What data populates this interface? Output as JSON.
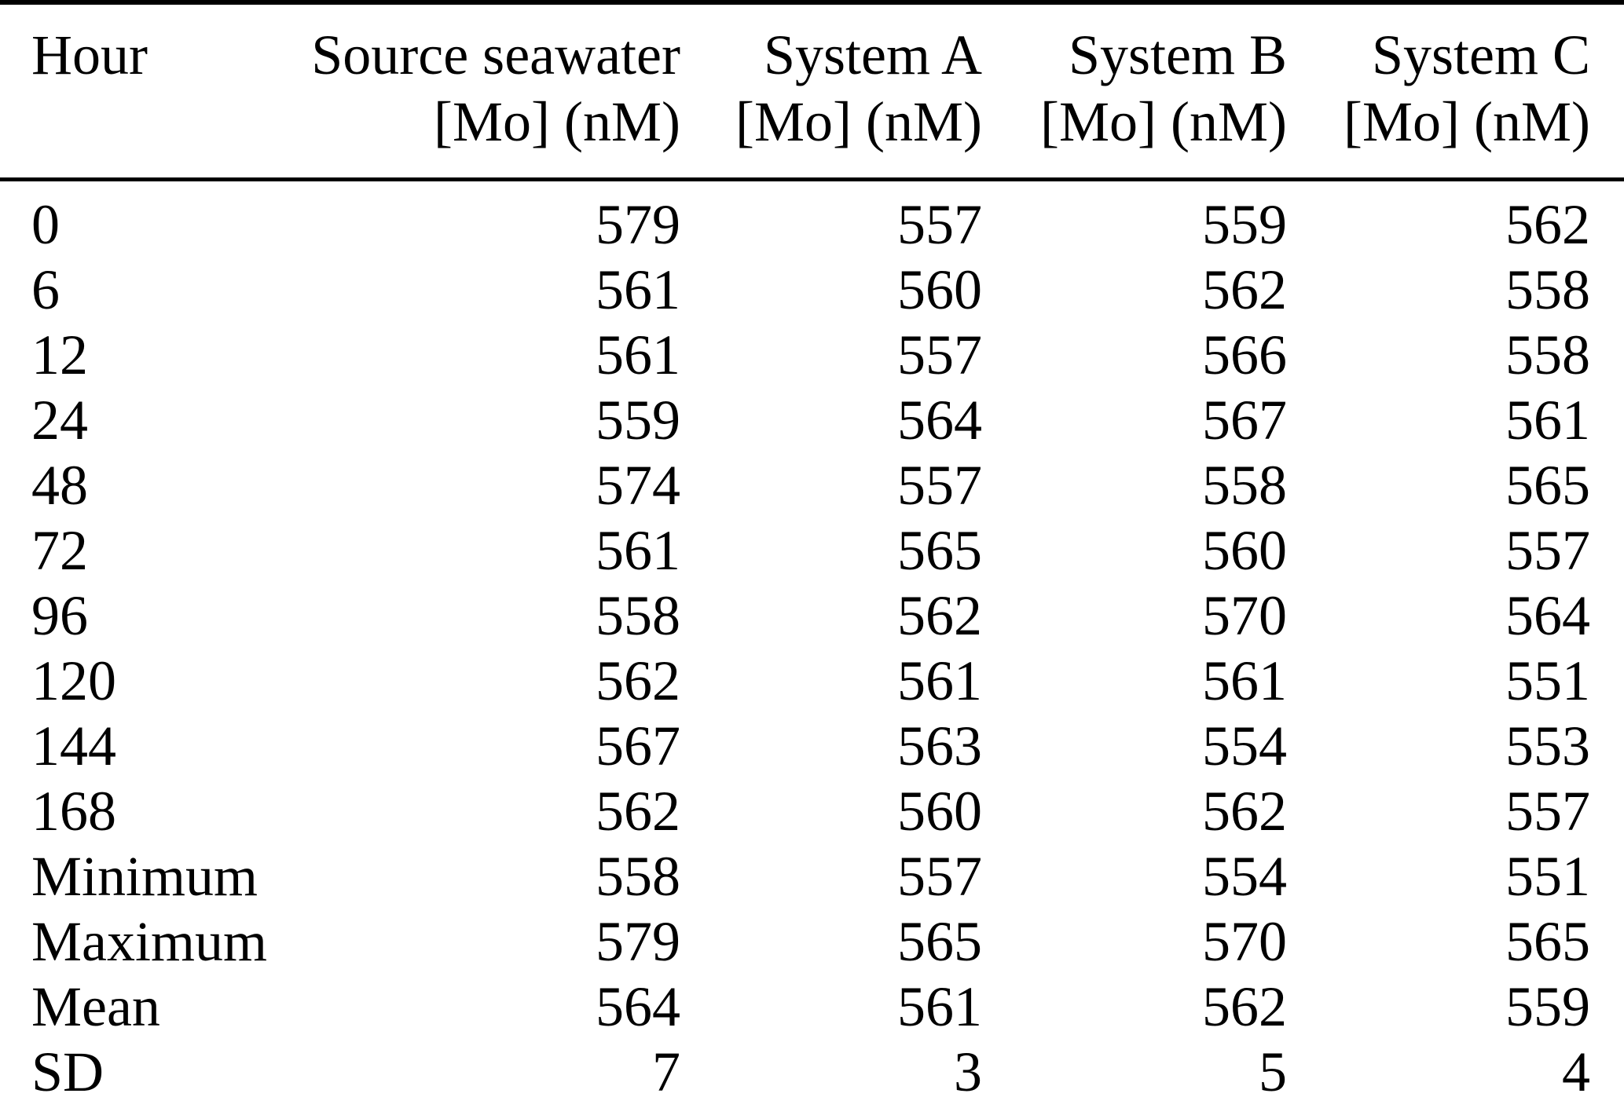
{
  "table": {
    "columns": [
      {
        "line1": "Hour",
        "line2": ""
      },
      {
        "line1": "Source seawater",
        "line2": "[Mo] (nM)"
      },
      {
        "line1": "System A",
        "line2": "[Mo] (nM)"
      },
      {
        "line1": "System B",
        "line2": "[Mo] (nM)"
      },
      {
        "line1": "System C",
        "line2": "[Mo] (nM)"
      }
    ],
    "rows": [
      {
        "label": "0",
        "values": [
          "579",
          "557",
          "559",
          "562"
        ]
      },
      {
        "label": "6",
        "values": [
          "561",
          "560",
          "562",
          "558"
        ]
      },
      {
        "label": "12",
        "values": [
          "561",
          "557",
          "566",
          "558"
        ]
      },
      {
        "label": "24",
        "values": [
          "559",
          "564",
          "567",
          "561"
        ]
      },
      {
        "label": "48",
        "values": [
          "574",
          "557",
          "558",
          "565"
        ]
      },
      {
        "label": "72",
        "values": [
          "561",
          "565",
          "560",
          "557"
        ]
      },
      {
        "label": "96",
        "values": [
          "558",
          "562",
          "570",
          "564"
        ]
      },
      {
        "label": "120",
        "values": [
          "562",
          "561",
          "561",
          "551"
        ]
      },
      {
        "label": "144",
        "values": [
          "567",
          "563",
          "554",
          "553"
        ]
      },
      {
        "label": "168",
        "values": [
          "562",
          "560",
          "562",
          "557"
        ]
      },
      {
        "label": "Minimum",
        "values": [
          "558",
          "557",
          "554",
          "551"
        ]
      },
      {
        "label": "Maximum",
        "values": [
          "579",
          "565",
          "570",
          "565"
        ]
      },
      {
        "label": "Mean",
        "values": [
          "564",
          "561",
          "562",
          "559"
        ]
      },
      {
        "label": "SD",
        "values": [
          "7",
          "3",
          "5",
          "4"
        ]
      }
    ]
  },
  "chart_data": {
    "type": "table",
    "title": "",
    "columns": [
      "Hour",
      "Source seawater [Mo] (nM)",
      "System A [Mo] (nM)",
      "System B [Mo] (nM)",
      "System C [Mo] (nM)"
    ],
    "hours": [
      0,
      6,
      12,
      24,
      48,
      72,
      96,
      120,
      144,
      168
    ],
    "series": [
      {
        "name": "Source seawater [Mo] (nM)",
        "values": [
          579,
          561,
          561,
          559,
          574,
          561,
          558,
          562,
          567,
          562
        ],
        "minimum": 558,
        "maximum": 579,
        "mean": 564,
        "sd": 7
      },
      {
        "name": "System A [Mo] (nM)",
        "values": [
          557,
          560,
          557,
          564,
          557,
          565,
          562,
          561,
          563,
          560
        ],
        "minimum": 557,
        "maximum": 565,
        "mean": 561,
        "sd": 3
      },
      {
        "name": "System B [Mo] (nM)",
        "values": [
          559,
          562,
          566,
          567,
          558,
          560,
          570,
          561,
          554,
          562
        ],
        "minimum": 554,
        "maximum": 570,
        "mean": 562,
        "sd": 5
      },
      {
        "name": "System C [Mo] (nM)",
        "values": [
          562,
          558,
          558,
          561,
          565,
          557,
          564,
          551,
          553,
          557
        ],
        "minimum": 551,
        "maximum": 565,
        "mean": 559,
        "sd": 4
      }
    ],
    "colors": {
      "text": "#000000",
      "background": "#ffffff",
      "rule": "#000000"
    }
  }
}
